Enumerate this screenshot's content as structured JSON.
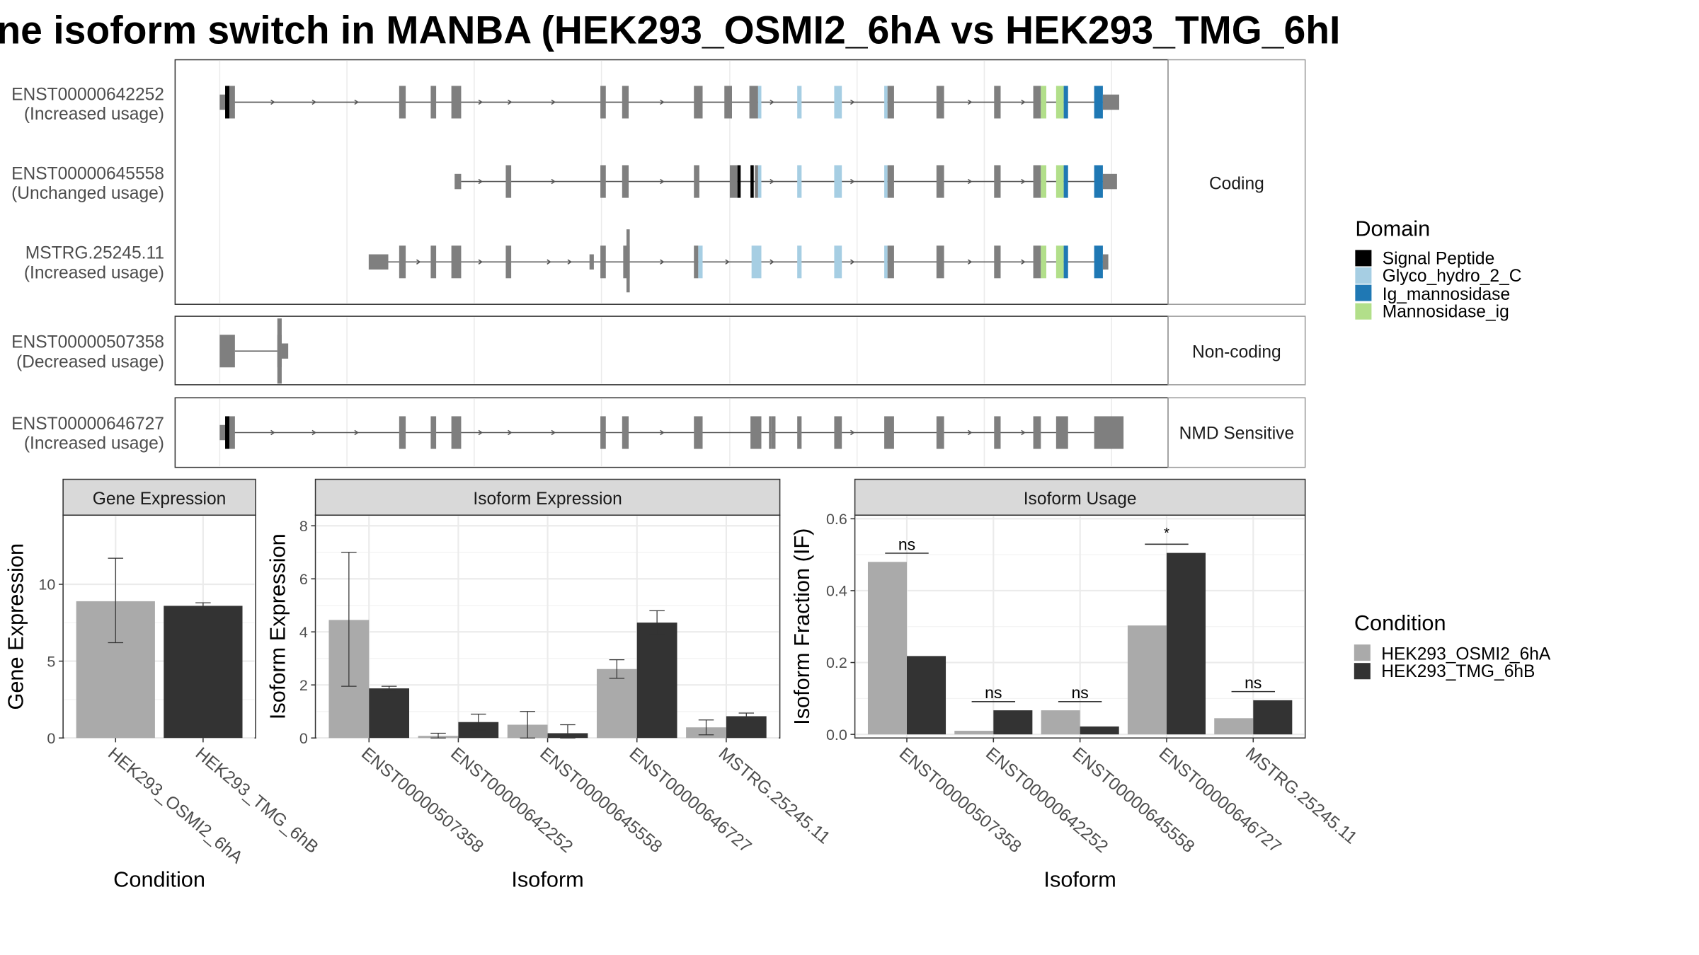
{
  "title": "ne isoform switch in MANBA (HEK293_OSMI2_6hA vs HEK293_TMG_6hI",
  "colors": {
    "exon": "#7f7f7f",
    "Signal Peptide": "#000000",
    "Glyco_hydro_2_C": "#a6cee3",
    "Ig_mannosidase": "#1f78b4",
    "Mannosidase_ig": "#b2df8a",
    "cond_a": "#aaaaaa",
    "cond_b": "#333333"
  },
  "structure": {
    "groups": [
      {
        "label": "Coding",
        "transcripts": [
          {
            "id": "ENST00000642252",
            "usage": "(Increased usage)"
          },
          {
            "id": "ENST00000645558",
            "usage": "(Unchanged usage)"
          },
          {
            "id": "MSTRG.25245.11",
            "usage": "(Increased usage)"
          }
        ]
      },
      {
        "label": "Non-coding",
        "transcripts": [
          {
            "id": "ENST00000507358",
            "usage": "(Decreased usage)"
          }
        ]
      },
      {
        "label": "NMD Sensitive",
        "transcripts": [
          {
            "id": "ENST00000646727",
            "usage": "(Increased usage)"
          }
        ]
      }
    ]
  },
  "legend_domain": {
    "title": "Domain",
    "items": [
      "Signal Peptide",
      "Glyco_hydro_2_C",
      "Ig_mannosidase",
      "Mannosidase_ig"
    ]
  },
  "legend_condition": {
    "title": "Condition",
    "items": [
      "HEK293_OSMI2_6hA",
      "HEK293_TMG_6hB"
    ]
  },
  "chart_data": [
    {
      "type": "bar",
      "title": "Gene Expression",
      "xlabel": "Condition",
      "ylabel": "Gene Expression",
      "categories": [
        "HEK293_OSMI2_6hA",
        "HEK293_TMG_6hB"
      ],
      "values": [
        8.9,
        8.6
      ],
      "errors": [
        [
          6.2,
          11.7
        ],
        [
          8.4,
          8.8
        ]
      ],
      "ylim": [
        0,
        14.5
      ],
      "yticks": [
        0,
        5,
        10
      ]
    },
    {
      "type": "bar",
      "title": "Isoform Expression",
      "xlabel": "Isoform",
      "ylabel": "Isoform Expression",
      "categories": [
        "ENST00000507358",
        "ENST00000642252",
        "ENST00000645558",
        "ENST00000646727",
        "MSTRG.25245.11"
      ],
      "series": [
        {
          "name": "HEK293_OSMI2_6hA",
          "values": [
            4.45,
            0.08,
            0.5,
            2.6,
            0.4
          ],
          "errors": [
            [
              1.95,
              7.0
            ],
            [
              0.0,
              0.18
            ],
            [
              0.0,
              1.0
            ],
            [
              2.25,
              2.95
            ],
            [
              0.12,
              0.68
            ]
          ]
        },
        {
          "name": "HEK293_TMG_6hB",
          "values": [
            1.87,
            0.6,
            0.18,
            4.35,
            0.82
          ],
          "errors": [
            [
              1.8,
              1.95
            ],
            [
              0.3,
              0.9
            ],
            [
              0.0,
              0.5
            ],
            [
              3.9,
              4.8
            ],
            [
              0.7,
              0.94
            ]
          ]
        }
      ],
      "ylim": [
        0,
        8.4
      ],
      "yticks": [
        0,
        2,
        4,
        6,
        8
      ]
    },
    {
      "type": "bar",
      "title": "Isoform Usage",
      "xlabel": "Isoform",
      "ylabel": "Isoform Fraction (IF)",
      "categories": [
        "ENST00000507358",
        "ENST00000642252",
        "ENST00000645558",
        "ENST00000646727",
        "MSTRG.25245.11"
      ],
      "series": [
        {
          "name": "HEK293_OSMI2_6hA",
          "values": [
            0.48,
            0.01,
            0.067,
            0.303,
            0.045
          ]
        },
        {
          "name": "HEK293_TMG_6hB",
          "values": [
            0.218,
            0.067,
            0.022,
            0.505,
            0.095
          ]
        }
      ],
      "significance": [
        "ns",
        "ns",
        "ns",
        "*",
        "ns"
      ],
      "ylim": [
        -0.01,
        0.61
      ],
      "yticks": [
        "0.0",
        "0.2",
        "0.4",
        "0.6"
      ]
    }
  ]
}
